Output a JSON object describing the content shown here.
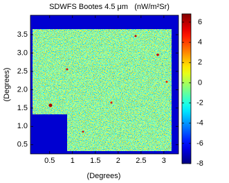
{
  "chart_data": {
    "type": "image",
    "title": "SDWFS Bootes 4.5 μm   (nW/m²Sr)",
    "x_label": "(Degrees)",
    "y_label": "(Degrees)",
    "xlim": [
      0.08,
      3.32
    ],
    "xticks": [
      0.5,
      1,
      1.5,
      2,
      2.5,
      3
    ],
    "ylim": [
      0.25,
      4.03
    ],
    "yticks": [
      0.5,
      {
        "value": 1,
        "label": "1.0"
      },
      1.5,
      {
        "value": 2,
        "label": "2.0"
      },
      2.5,
      {
        "value": 3,
        "label": "3.0"
      },
      3.5
    ],
    "colormap": "jet",
    "clim": [
      -8,
      6.82
    ],
    "cticks": [
      -8,
      -6,
      -4,
      -2,
      0,
      2,
      4,
      6
    ]
  }
}
